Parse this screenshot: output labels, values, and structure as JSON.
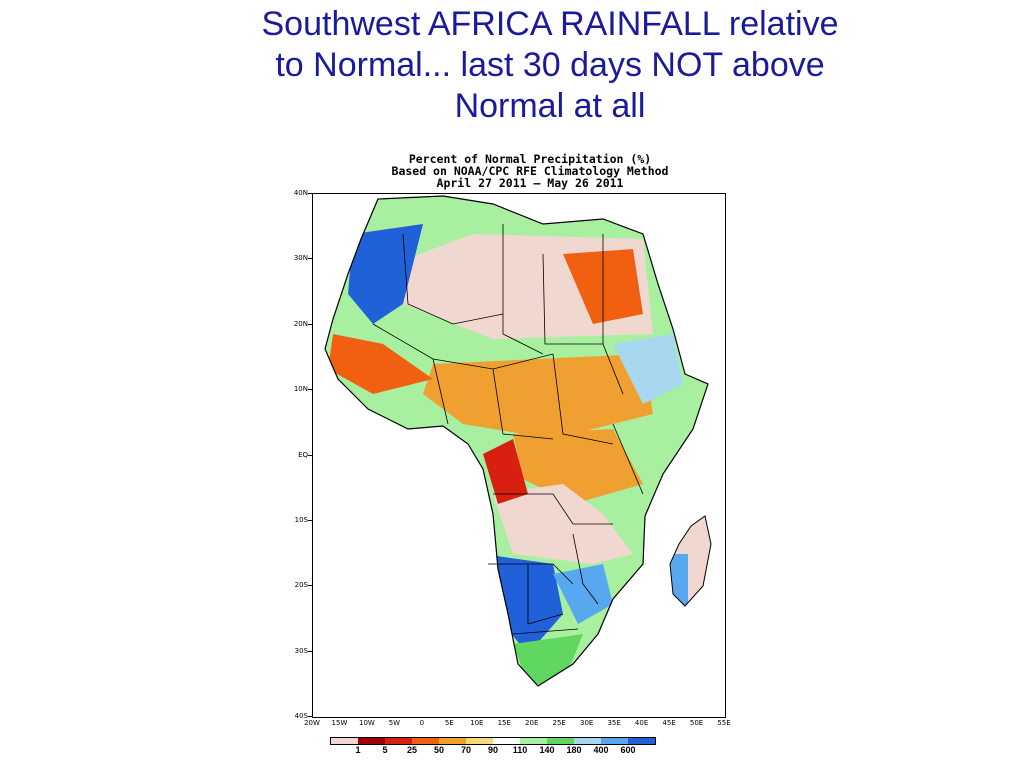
{
  "slide": {
    "title": "Southwest AFRICA   RAINFALL    relative\nto Normal...  last 30 days    NOT   above\nNormal at all"
  },
  "map": {
    "header_lines": [
      "Percent of Normal Precipitation (%)",
      "Based on NOAA/CPC RFE Climatology Method",
      "April 27 2011 – May 26 2011"
    ],
    "lat_labels": [
      "40N",
      "30N",
      "20N",
      "10N",
      "EQ",
      "10S",
      "20S",
      "30S",
      "40S"
    ],
    "lon_labels": [
      "20W",
      "15W",
      "10W",
      "5W",
      "0",
      "5E",
      "10E",
      "15E",
      "20E",
      "25E",
      "30E",
      "35E",
      "40E",
      "45E",
      "50E",
      "55E"
    ]
  },
  "legend": {
    "colors": [
      "#f0d8d0",
      "#a00000",
      "#d82010",
      "#f06010",
      "#f0a030",
      "#f8d878",
      "#ffffff",
      "#a8f0a0",
      "#60d860",
      "#a8d8f0",
      "#58a8f0",
      "#2060d8"
    ],
    "labels": [
      "1",
      "5",
      "25",
      "50",
      "70",
      "90",
      "110",
      "140",
      "180",
      "400",
      "600"
    ]
  }
}
